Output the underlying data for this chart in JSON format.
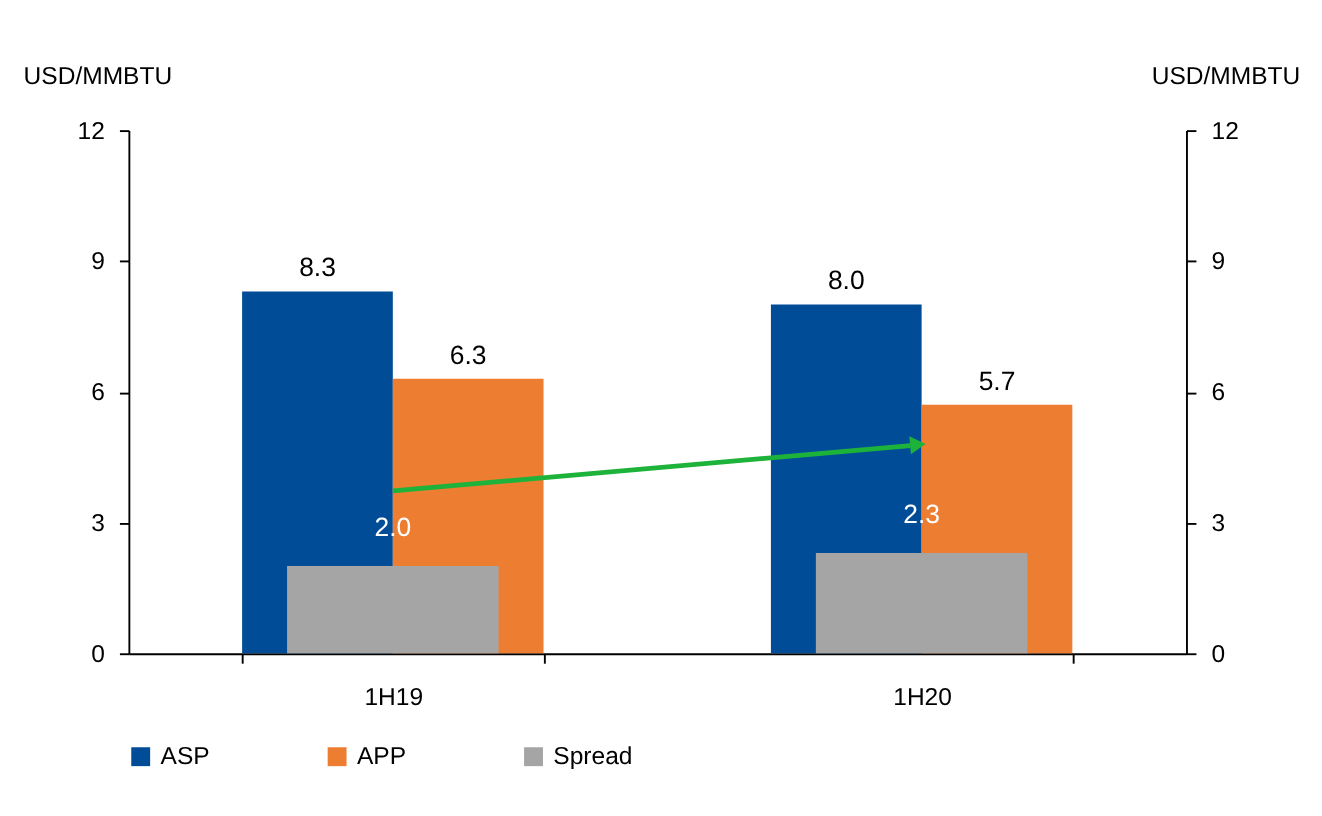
{
  "chart_data": {
    "type": "bar",
    "categories": [
      "1H19",
      "1H20"
    ],
    "series": [
      {
        "name": "ASP",
        "color": "#004c97",
        "values": [
          8.3,
          8.0
        ],
        "value_labels": [
          "8.3",
          "8.0"
        ]
      },
      {
        "name": "APP",
        "color": "#ed7d31",
        "values": [
          6.3,
          5.7
        ],
        "value_labels": [
          "6.3",
          "5.7"
        ]
      },
      {
        "name": "Spread",
        "color": "#a5a5a5",
        "values": [
          2.0,
          2.3
        ],
        "value_labels": [
          "2.0",
          "2.3"
        ],
        "axis": "y2"
      }
    ],
    "ylabel": "USD/MMBTU",
    "y2label": "USD/MMBTU",
    "ylim": [
      0,
      12
    ],
    "yticks": [
      0,
      3,
      6,
      9,
      12
    ],
    "y2lim": [
      0,
      12
    ],
    "y2ticks": [
      0,
      3,
      6,
      9,
      12
    ],
    "legend": "bottom",
    "grid": false
  }
}
